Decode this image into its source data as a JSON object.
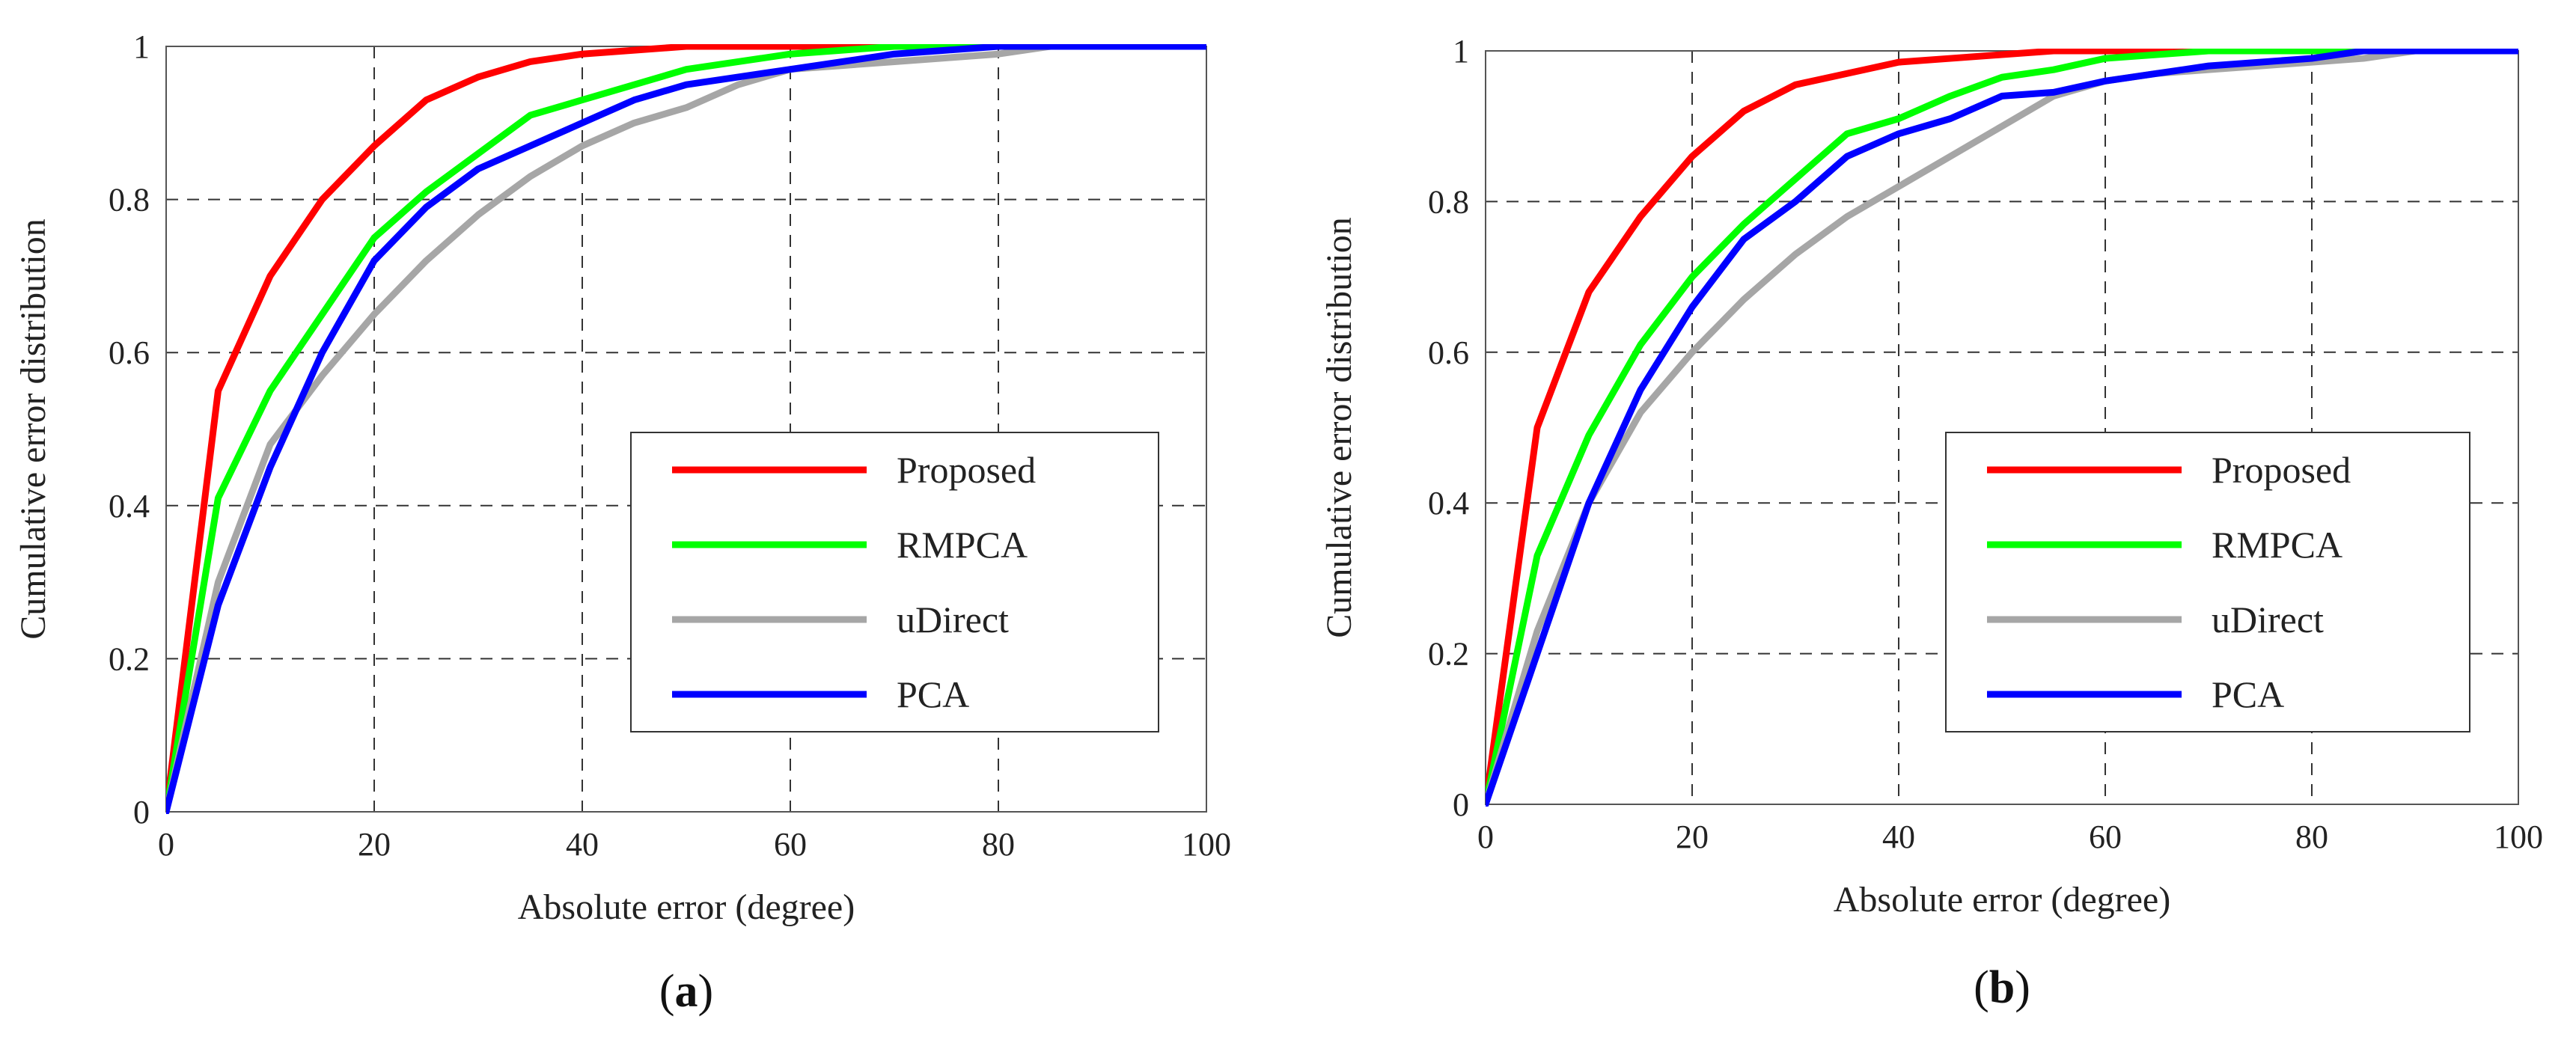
{
  "chart_data": [
    {
      "type": "line",
      "panel_label": "a",
      "xlabel": "Absolute error (degree)",
      "ylabel": "Cumulative error distribution",
      "xlim": [
        0,
        100
      ],
      "ylim": [
        0,
        1
      ],
      "xticks": [
        "0",
        "20",
        "40",
        "60",
        "80",
        "100"
      ],
      "yticks": [
        "0",
        "0.2",
        "0.4",
        "0.6",
        "0.8",
        "1"
      ],
      "grid": true,
      "legend_position": "lower-right",
      "x": [
        0,
        5,
        10,
        15,
        20,
        25,
        30,
        35,
        40,
        45,
        50,
        55,
        60,
        65,
        70,
        75,
        80,
        85,
        90,
        95,
        100
      ],
      "series": [
        {
          "name": "Proposed",
          "color": "#ff0000",
          "values": [
            0,
            0.55,
            0.7,
            0.8,
            0.87,
            0.93,
            0.96,
            0.98,
            0.99,
            0.995,
            1,
            1,
            1,
            1,
            1,
            1,
            1,
            1,
            1,
            1,
            1
          ]
        },
        {
          "name": "RMPCA",
          "color": "#00ff00",
          "values": [
            0,
            0.41,
            0.55,
            0.65,
            0.75,
            0.81,
            0.86,
            0.91,
            0.93,
            0.95,
            0.97,
            0.98,
            0.99,
            0.995,
            1,
            1,
            1,
            1,
            1,
            1,
            1
          ]
        },
        {
          "name": "uDirect",
          "color": "#a6a6a6",
          "values": [
            0,
            0.3,
            0.48,
            0.57,
            0.65,
            0.72,
            0.78,
            0.83,
            0.87,
            0.9,
            0.92,
            0.95,
            0.97,
            0.975,
            0.98,
            0.985,
            0.99,
            1,
            1,
            1,
            1
          ]
        },
        {
          "name": "PCA",
          "color": "#0000ff",
          "values": [
            0,
            0.27,
            0.45,
            0.6,
            0.72,
            0.79,
            0.84,
            0.87,
            0.9,
            0.93,
            0.95,
            0.96,
            0.97,
            0.98,
            0.99,
            0.995,
            1,
            1,
            1,
            1,
            1
          ]
        }
      ]
    },
    {
      "type": "line",
      "panel_label": "b",
      "xlabel": "Absolute error (degree)",
      "ylabel": "Cumulative error distribution",
      "xlim": [
        0,
        100
      ],
      "ylim": [
        0,
        1
      ],
      "xticks": [
        "0",
        "20",
        "40",
        "60",
        "80",
        "100"
      ],
      "yticks": [
        "0",
        "0.2",
        "0.4",
        "0.6",
        "0.8",
        "1"
      ],
      "grid": true,
      "legend_position": "lower-right",
      "x": [
        0,
        5,
        10,
        15,
        20,
        25,
        30,
        35,
        40,
        45,
        50,
        55,
        60,
        65,
        70,
        75,
        80,
        85,
        90,
        95,
        100
      ],
      "series": [
        {
          "name": "Proposed",
          "color": "#ff0000",
          "values": [
            0,
            0.5,
            0.68,
            0.78,
            0.86,
            0.92,
            0.955,
            0.97,
            0.985,
            0.99,
            0.995,
            1,
            1,
            1,
            1,
            1,
            1,
            1,
            1,
            1,
            1
          ]
        },
        {
          "name": "RMPCA",
          "color": "#00ff00",
          "values": [
            0,
            0.33,
            0.49,
            0.61,
            0.7,
            0.77,
            0.83,
            0.89,
            0.91,
            0.94,
            0.965,
            0.975,
            0.99,
            0.995,
            1,
            1,
            1,
            1,
            1,
            1,
            1
          ]
        },
        {
          "name": "uDirect",
          "color": "#a6a6a6",
          "values": [
            0,
            0.23,
            0.4,
            0.52,
            0.6,
            0.67,
            0.73,
            0.78,
            0.82,
            0.86,
            0.9,
            0.94,
            0.96,
            0.97,
            0.975,
            0.98,
            0.985,
            0.99,
            1,
            1,
            1
          ]
        },
        {
          "name": "PCA",
          "color": "#0000ff",
          "values": [
            0,
            0.2,
            0.4,
            0.55,
            0.66,
            0.75,
            0.8,
            0.86,
            0.89,
            0.91,
            0.94,
            0.945,
            0.96,
            0.97,
            0.98,
            0.985,
            0.99,
            1,
            1,
            1,
            1
          ]
        }
      ]
    }
  ]
}
